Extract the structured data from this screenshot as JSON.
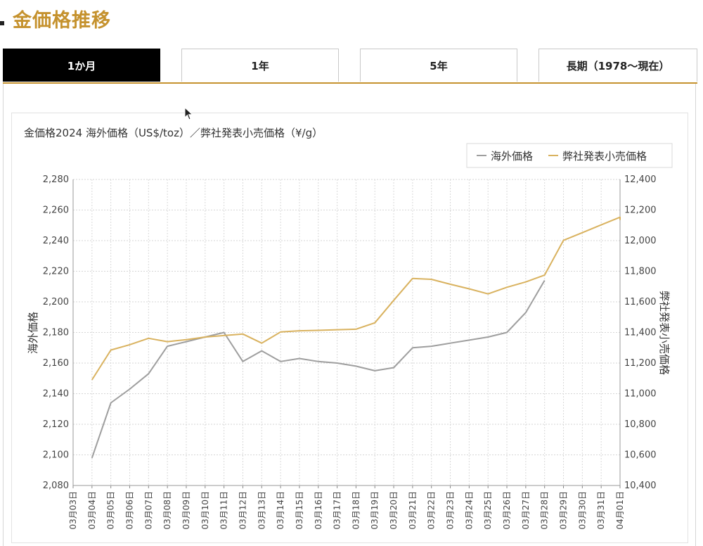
{
  "page": {
    "heading": "金価格推移"
  },
  "tabs": [
    {
      "label": "1か月",
      "active": true
    },
    {
      "label": "1年",
      "active": false
    },
    {
      "label": "5年",
      "active": false
    },
    {
      "label": "長期（1978〜現在）",
      "active": false
    }
  ],
  "colors": {
    "accent": "#c5922e",
    "overseas_line": "#9e9e9e",
    "retail_line": "#d9b25f"
  },
  "chart_data": {
    "type": "line",
    "title": "金価格2024 海外価格（US$/toz）／弊社発表小売価格（¥/g）",
    "legend_position": "top-right",
    "grid": true,
    "categories": [
      "03月03日",
      "03月04日",
      "03月05日",
      "03月06日",
      "03月07日",
      "03月08日",
      "03月09日",
      "03月10日",
      "03月11日",
      "03月12日",
      "03月13日",
      "03月14日",
      "03月15日",
      "03月16日",
      "03月17日",
      "03月18日",
      "03月19日",
      "03月20日",
      "03月21日",
      "03月22日",
      "03月23日",
      "03月24日",
      "03月25日",
      "03月26日",
      "03月27日",
      "03月28日",
      "03月29日",
      "03月30日",
      "03月31日",
      "04月01日"
    ],
    "ylabel_left": "海外価格",
    "ylabel_right": "弊社発表小売価格",
    "ylim_left": [
      2080,
      2280
    ],
    "ylim_right": [
      10400,
      12400
    ],
    "yticks_left": [
      "2,080",
      "2,100",
      "2,120",
      "2,140",
      "2,160",
      "2,180",
      "2,200",
      "2,220",
      "2,240",
      "2,260",
      "2,280"
    ],
    "yticks_right": [
      "10,400",
      "10,600",
      "10,800",
      "11,000",
      "11,200",
      "11,400",
      "11,600",
      "11,800",
      "12,000",
      "12,200",
      "12,400"
    ],
    "series": [
      {
        "name": "海外価格",
        "axis": "left",
        "values": [
          null,
          2098,
          2134,
          2143,
          2153,
          2171,
          2174,
          2177,
          2180,
          2161,
          2168,
          2161,
          2163,
          2161,
          2160,
          2158,
          2155,
          2157,
          2170,
          2171,
          2173,
          2175,
          2177,
          2180,
          2193,
          2214,
          null,
          null,
          null,
          null
        ]
      },
      {
        "name": "弊社発表小売価格",
        "axis": "right",
        "values": [
          null,
          11090,
          11285,
          11320,
          11362,
          11340,
          11353,
          11370,
          11380,
          11390,
          11330,
          11403,
          11411,
          11414,
          11418,
          11421,
          11463,
          11610,
          11753,
          11747,
          11715,
          11685,
          11652,
          11695,
          11730,
          11775,
          12002,
          12052,
          12103,
          12153
        ]
      }
    ],
    "extra_x_point_value": 12135
  }
}
